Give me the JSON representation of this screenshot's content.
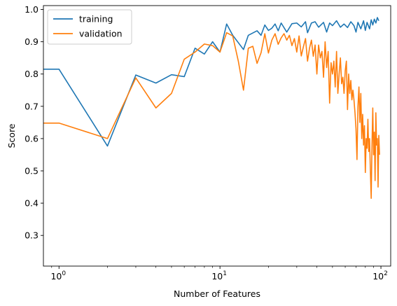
{
  "chart_data": {
    "type": "line",
    "xlabel": "Number of Features",
    "ylabel": "Score",
    "xscale": "log",
    "xlim": [
      0.8,
      115
    ],
    "ylim": [
      0.205,
      1.012
    ],
    "y_ticks": [
      0.3,
      0.4,
      0.5,
      0.6,
      0.7,
      0.8,
      0.9,
      1.0
    ],
    "y_tick_labels": [
      "0.3",
      "0.4",
      "0.5",
      "0.6",
      "0.7",
      "0.8",
      "0.9",
      "1.0"
    ],
    "x_ticks": [
      1,
      10,
      100
    ],
    "x_tick_labels": [
      {
        "base": "10",
        "exp": "0"
      },
      {
        "base": "10",
        "exp": "1"
      },
      {
        "base": "10",
        "exp": "2"
      }
    ],
    "grid": false,
    "legend_position": "top-left",
    "series": [
      {
        "name": "training",
        "color": "#1f77b4",
        "x": [
          0.8,
          1,
          2,
          3,
          4,
          5,
          6,
          7,
          8,
          9,
          10,
          11,
          12,
          14,
          15,
          17,
          18,
          19,
          20,
          21,
          22,
          23,
          24,
          26,
          28,
          30,
          32,
          34,
          35,
          37,
          39,
          41,
          44,
          46,
          48,
          50,
          53,
          56,
          59,
          62,
          65,
          68,
          70,
          72,
          75,
          78,
          80,
          82,
          85,
          87,
          89,
          91,
          93,
          95,
          97
        ],
        "y": [
          0.815,
          0.815,
          0.577,
          0.797,
          0.772,
          0.798,
          0.792,
          0.88,
          0.862,
          0.9,
          0.868,
          0.955,
          0.92,
          0.876,
          0.92,
          0.934,
          0.92,
          0.952,
          0.935,
          0.942,
          0.955,
          0.934,
          0.958,
          0.93,
          0.956,
          0.958,
          0.946,
          0.962,
          0.928,
          0.958,
          0.962,
          0.945,
          0.96,
          0.93,
          0.958,
          0.95,
          0.965,
          0.945,
          0.955,
          0.944,
          0.962,
          0.95,
          0.93,
          0.96,
          0.94,
          0.965,
          0.935,
          0.96,
          0.94,
          0.968,
          0.952,
          0.97,
          0.958,
          0.975,
          0.965
        ]
      },
      {
        "name": "validation",
        "color": "#ff7f0e",
        "x": [
          0.8,
          1,
          2,
          3,
          4,
          5,
          6,
          7,
          8,
          9,
          10,
          11,
          12,
          13,
          14,
          15,
          16,
          17,
          18,
          19,
          20,
          21,
          22,
          23,
          24,
          25,
          26,
          27,
          28,
          29,
          30,
          31,
          32,
          33,
          34,
          35,
          36,
          37,
          38,
          39,
          40,
          41,
          42,
          43,
          44,
          45,
          46,
          47,
          48,
          49,
          50,
          51,
          52,
          53,
          54,
          55,
          56,
          57,
          58,
          59,
          60,
          61,
          62,
          63,
          64,
          65,
          66,
          67,
          68,
          69,
          70,
          71,
          72,
          73,
          74,
          75,
          76,
          77,
          78,
          79,
          80,
          81,
          82,
          83,
          84,
          85,
          86,
          87,
          88,
          89,
          90,
          91,
          92,
          93,
          94,
          95,
          96,
          97,
          98
        ],
        "y": [
          0.648,
          0.648,
          0.6,
          0.788,
          0.695,
          0.74,
          0.846,
          0.868,
          0.893,
          0.888,
          0.868,
          0.928,
          0.918,
          0.84,
          0.75,
          0.88,
          0.886,
          0.833,
          0.866,
          0.925,
          0.865,
          0.905,
          0.925,
          0.892,
          0.912,
          0.925,
          0.905,
          0.92,
          0.888,
          0.91,
          0.868,
          0.918,
          0.856,
          0.885,
          0.91,
          0.84,
          0.88,
          0.905,
          0.855,
          0.89,
          0.8,
          0.89,
          0.85,
          0.87,
          0.79,
          0.9,
          0.82,
          0.87,
          0.71,
          0.835,
          0.8,
          0.84,
          0.76,
          0.87,
          0.74,
          0.8,
          0.85,
          0.77,
          0.79,
          0.74,
          0.81,
          0.84,
          0.69,
          0.8,
          0.74,
          0.78,
          0.72,
          0.75,
          0.72,
          0.68,
          0.63,
          0.535,
          0.7,
          0.76,
          0.65,
          0.74,
          0.6,
          0.675,
          0.58,
          0.64,
          0.495,
          0.6,
          0.57,
          0.66,
          0.56,
          0.6,
          0.5,
          0.415,
          0.58,
          0.695,
          0.55,
          0.62,
          0.47,
          0.68,
          0.58,
          0.6,
          0.45,
          0.61,
          0.55
        ]
      }
    ]
  }
}
